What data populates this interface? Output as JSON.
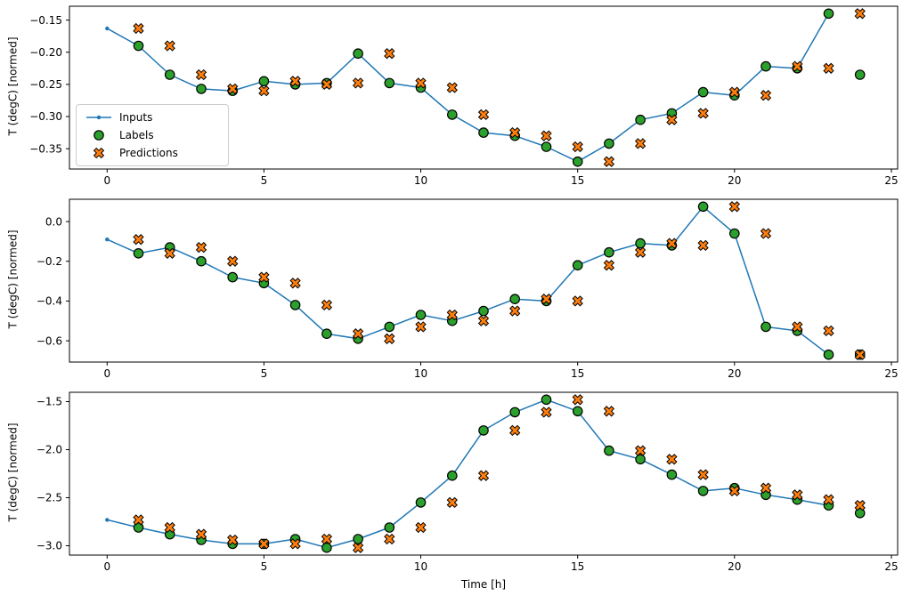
{
  "figure": {
    "xlabel": "Time [h]",
    "ylabel": "T (degC) [normed]",
    "legend": {
      "position": "upper-left-of-first-subplot",
      "items": [
        {
          "label": "Inputs"
        },
        {
          "label": "Labels"
        },
        {
          "label": "Predictions"
        }
      ]
    }
  },
  "chart_data": [
    {
      "type": "line",
      "ylabel": "T (degC) [normed]",
      "xlim": [
        -1.2,
        25.2
      ],
      "ylim": [
        -0.3815,
        -0.1285
      ],
      "xticks": [
        0,
        5,
        10,
        15,
        20,
        25
      ],
      "xtick_labels": [
        "0",
        "5",
        "10",
        "15",
        "20",
        "25"
      ],
      "yticks": [
        -0.15,
        -0.2,
        -0.25,
        -0.3,
        -0.35
      ],
      "ytick_labels": [
        "−0.15",
        "−0.20",
        "−0.25",
        "−0.30",
        "−0.35"
      ],
      "grid": false,
      "series": [
        {
          "name": "Inputs",
          "type": "line-with-dots",
          "color": "#1f77b4",
          "x": [
            0,
            1,
            2,
            3,
            4,
            5,
            6,
            7,
            8,
            9,
            10,
            11,
            12,
            13,
            14,
            15,
            16,
            17,
            18,
            19,
            20,
            21,
            22,
            23
          ],
          "y": [
            -0.163,
            -0.19,
            -0.235,
            -0.257,
            -0.26,
            -0.245,
            -0.25,
            -0.248,
            -0.202,
            -0.248,
            -0.255,
            -0.297,
            -0.325,
            -0.33,
            -0.347,
            -0.37,
            -0.342,
            -0.305,
            -0.295,
            -0.262,
            -0.267,
            -0.222,
            -0.225,
            -0.14
          ]
        },
        {
          "name": "Labels",
          "type": "scatter-circle",
          "color": "#2ca02c",
          "edge": "#000000",
          "x": [
            1,
            2,
            3,
            4,
            5,
            6,
            7,
            8,
            9,
            10,
            11,
            12,
            13,
            14,
            15,
            16,
            17,
            18,
            19,
            20,
            21,
            22,
            23,
            24
          ],
          "y": [
            -0.19,
            -0.235,
            -0.257,
            -0.26,
            -0.245,
            -0.25,
            -0.248,
            -0.202,
            -0.248,
            -0.255,
            -0.297,
            -0.325,
            -0.33,
            -0.347,
            -0.37,
            -0.342,
            -0.305,
            -0.295,
            -0.262,
            -0.267,
            -0.222,
            -0.225,
            -0.14,
            -0.235
          ]
        },
        {
          "name": "Predictions",
          "type": "scatter-x",
          "color": "#ff7f0e",
          "edge": "#000000",
          "x": [
            1,
            2,
            3,
            4,
            5,
            6,
            7,
            8,
            9,
            10,
            11,
            12,
            13,
            14,
            15,
            16,
            17,
            18,
            19,
            20,
            21,
            22,
            23,
            24
          ],
          "y": [
            -0.163,
            -0.19,
            -0.235,
            -0.257,
            -0.26,
            -0.245,
            -0.25,
            -0.248,
            -0.202,
            -0.248,
            -0.255,
            -0.297,
            -0.325,
            -0.33,
            -0.347,
            -0.37,
            -0.342,
            -0.305,
            -0.295,
            -0.262,
            -0.267,
            -0.222,
            -0.225,
            -0.14
          ]
        }
      ]
    },
    {
      "type": "line",
      "ylabel": "T (degC) [normed]",
      "xlim": [
        -1.2,
        25.2
      ],
      "ylim": [
        -0.70725,
        0.11225
      ],
      "xticks": [
        0,
        5,
        10,
        15,
        20,
        25
      ],
      "xtick_labels": [
        "0",
        "5",
        "10",
        "15",
        "20",
        "25"
      ],
      "yticks": [
        0.0,
        -0.2,
        -0.4,
        -0.6
      ],
      "ytick_labels": [
        "0.0",
        "−0.2",
        "−0.4",
        "−0.6"
      ],
      "grid": false,
      "series": [
        {
          "name": "Inputs",
          "type": "line-with-dots",
          "color": "#1f77b4",
          "x": [
            0,
            1,
            2,
            3,
            4,
            5,
            6,
            7,
            8,
            9,
            10,
            11,
            12,
            13,
            14,
            15,
            16,
            17,
            18,
            19,
            20,
            21,
            22,
            23
          ],
          "y": [
            -0.09,
            -0.16,
            -0.13,
            -0.2,
            -0.28,
            -0.31,
            -0.42,
            -0.565,
            -0.59,
            -0.53,
            -0.47,
            -0.5,
            -0.45,
            -0.39,
            -0.4,
            -0.22,
            -0.155,
            -0.11,
            -0.12,
            0.075,
            -0.06,
            -0.53,
            -0.55,
            -0.67
          ]
        },
        {
          "name": "Labels",
          "type": "scatter-circle",
          "color": "#2ca02c",
          "edge": "#000000",
          "x": [
            1,
            2,
            3,
            4,
            5,
            6,
            7,
            8,
            9,
            10,
            11,
            12,
            13,
            14,
            15,
            16,
            17,
            18,
            19,
            20,
            21,
            22,
            23,
            24
          ],
          "y": [
            -0.16,
            -0.13,
            -0.2,
            -0.28,
            -0.31,
            -0.42,
            -0.565,
            -0.59,
            -0.53,
            -0.47,
            -0.5,
            -0.45,
            -0.39,
            -0.4,
            -0.22,
            -0.155,
            -0.11,
            -0.12,
            0.075,
            -0.06,
            -0.53,
            -0.55,
            -0.67,
            -0.67
          ]
        },
        {
          "name": "Predictions",
          "type": "scatter-x",
          "color": "#ff7f0e",
          "edge": "#000000",
          "x": [
            1,
            2,
            3,
            4,
            5,
            6,
            7,
            8,
            9,
            10,
            11,
            12,
            13,
            14,
            15,
            16,
            17,
            18,
            19,
            20,
            21,
            22,
            23,
            24
          ],
          "y": [
            -0.09,
            -0.16,
            -0.13,
            -0.2,
            -0.28,
            -0.31,
            -0.42,
            -0.565,
            -0.59,
            -0.53,
            -0.47,
            -0.5,
            -0.45,
            -0.39,
            -0.4,
            -0.22,
            -0.155,
            -0.11,
            -0.12,
            0.075,
            -0.06,
            -0.53,
            -0.55,
            -0.67
          ]
        }
      ]
    },
    {
      "type": "line",
      "ylabel": "T (degC) [normed]",
      "xlim": [
        -1.2,
        25.2
      ],
      "ylim": [
        -3.097,
        -1.403
      ],
      "xticks": [
        0,
        5,
        10,
        15,
        20,
        25
      ],
      "xtick_labels": [
        "0",
        "5",
        "10",
        "15",
        "20",
        "25"
      ],
      "yticks": [
        -1.5,
        -2.0,
        -2.5,
        -3.0
      ],
      "ytick_labels": [
        "−1.5",
        "−2.0",
        "−2.5",
        "−3.0"
      ],
      "grid": false,
      "series": [
        {
          "name": "Inputs",
          "type": "line-with-dots",
          "color": "#1f77b4",
          "x": [
            0,
            1,
            2,
            3,
            4,
            5,
            6,
            7,
            8,
            9,
            10,
            11,
            12,
            13,
            14,
            15,
            16,
            17,
            18,
            19,
            20,
            21,
            22,
            23
          ],
          "y": [
            -2.73,
            -2.81,
            -2.88,
            -2.94,
            -2.98,
            -2.98,
            -2.93,
            -3.02,
            -2.93,
            -2.81,
            -2.55,
            -2.27,
            -1.8,
            -1.61,
            -1.48,
            -1.6,
            -2.01,
            -2.1,
            -2.26,
            -2.43,
            -2.4,
            -2.47,
            -2.52,
            -2.58
          ]
        },
        {
          "name": "Labels",
          "type": "scatter-circle",
          "color": "#2ca02c",
          "edge": "#000000",
          "x": [
            1,
            2,
            3,
            4,
            5,
            6,
            7,
            8,
            9,
            10,
            11,
            12,
            13,
            14,
            15,
            16,
            17,
            18,
            19,
            20,
            21,
            22,
            23,
            24
          ],
          "y": [
            -2.81,
            -2.88,
            -2.94,
            -2.98,
            -2.98,
            -2.93,
            -3.02,
            -2.93,
            -2.81,
            -2.55,
            -2.27,
            -1.8,
            -1.61,
            -1.48,
            -1.6,
            -2.01,
            -2.1,
            -2.26,
            -2.43,
            -2.4,
            -2.47,
            -2.52,
            -2.58,
            -2.66
          ]
        },
        {
          "name": "Predictions",
          "type": "scatter-x",
          "color": "#ff7f0e",
          "edge": "#000000",
          "x": [
            1,
            2,
            3,
            4,
            5,
            6,
            7,
            8,
            9,
            10,
            11,
            12,
            13,
            14,
            15,
            16,
            17,
            18,
            19,
            20,
            21,
            22,
            23,
            24
          ],
          "y": [
            -2.73,
            -2.81,
            -2.88,
            -2.94,
            -2.98,
            -2.98,
            -2.93,
            -3.02,
            -2.93,
            -2.81,
            -2.55,
            -2.27,
            -1.8,
            -1.61,
            -1.48,
            -1.6,
            -2.01,
            -2.1,
            -2.26,
            -2.43,
            -2.4,
            -2.47,
            -2.52,
            -2.58
          ]
        }
      ]
    }
  ]
}
